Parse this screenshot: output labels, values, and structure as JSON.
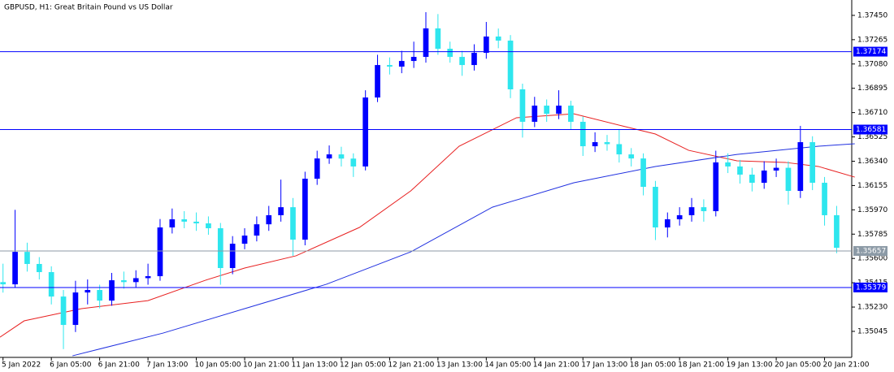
{
  "chart_data": {
    "type": "candlestick",
    "title": "GBPUSD, H1:  Great Britain Pound vs US Dollar",
    "up_color": "#0000ff",
    "down_color": "#2ee6ee",
    "xlim": [
      -1,
      281
    ],
    "ylim": [
      1.34847,
      1.37567
    ],
    "x": [
      0,
      4,
      8,
      12,
      16,
      20,
      24,
      28,
      32,
      36,
      40,
      44,
      48,
      52,
      56,
      60,
      64,
      68,
      72,
      76,
      80,
      84,
      88,
      92,
      96,
      100,
      104,
      108,
      112,
      116,
      120,
      124,
      128,
      132,
      136,
      140,
      144,
      148,
      152,
      156,
      160,
      164,
      168,
      172,
      176,
      180,
      184,
      188,
      192,
      196,
      200,
      204,
      208,
      212,
      216,
      220,
      224,
      228,
      232,
      236,
      240,
      244,
      248,
      252,
      256,
      260,
      264,
      268,
      272,
      276
    ],
    "ohlc": [
      [
        1.3542,
        1.3556,
        1.3534,
        1.35403
      ],
      [
        1.35403,
        1.3597,
        1.3538,
        1.3565
      ],
      [
        1.3565,
        1.3572,
        1.355,
        1.35558
      ],
      [
        1.35558,
        1.3561,
        1.3544,
        1.35496
      ],
      [
        1.35496,
        1.3554,
        1.3525,
        1.3531
      ],
      [
        1.3531,
        1.3536,
        1.3491,
        1.35094
      ],
      [
        1.35094,
        1.3543,
        1.3504,
        1.35341
      ],
      [
        1.35341,
        1.3544,
        1.3525,
        1.3536
      ],
      [
        1.3536,
        1.354,
        1.3522,
        1.35279
      ],
      [
        1.35279,
        1.3549,
        1.3524,
        1.35434
      ],
      [
        1.35434,
        1.355,
        1.3537,
        1.3542
      ],
      [
        1.3542,
        1.3551,
        1.3538,
        1.3545
      ],
      [
        1.3545,
        1.3556,
        1.354,
        1.35465
      ],
      [
        1.35465,
        1.359,
        1.3543,
        1.35836
      ],
      [
        1.35836,
        1.3598,
        1.3579,
        1.35898
      ],
      [
        1.35898,
        1.3596,
        1.3583,
        1.3588
      ],
      [
        1.3588,
        1.3595,
        1.3581,
        1.35867
      ],
      [
        1.35867,
        1.3592,
        1.3578,
        1.3583
      ],
      [
        1.3583,
        1.3587,
        1.354,
        1.35527
      ],
      [
        1.35527,
        1.3577,
        1.3548,
        1.35712
      ],
      [
        1.35712,
        1.3583,
        1.3567,
        1.35774
      ],
      [
        1.35774,
        1.3592,
        1.3573,
        1.3586
      ],
      [
        1.3586,
        1.36,
        1.3581,
        1.35929
      ],
      [
        1.35929,
        1.362,
        1.3588,
        1.3599
      ],
      [
        1.3599,
        1.3606,
        1.3562,
        1.35743
      ],
      [
        1.35743,
        1.3626,
        1.357,
        1.36207
      ],
      [
        1.36207,
        1.3642,
        1.3616,
        1.36361
      ],
      [
        1.36361,
        1.3646,
        1.3632,
        1.36392
      ],
      [
        1.36392,
        1.3645,
        1.363,
        1.3636
      ],
      [
        1.3636,
        1.364,
        1.3622,
        1.363
      ],
      [
        1.363,
        1.3688,
        1.3627,
        1.36825
      ],
      [
        1.36825,
        1.3715,
        1.3679,
        1.37072
      ],
      [
        1.37072,
        1.3713,
        1.37,
        1.3706
      ],
      [
        1.3706,
        1.3718,
        1.3701,
        1.37103
      ],
      [
        1.37103,
        1.3725,
        1.3705,
        1.37134
      ],
      [
        1.37134,
        1.37474,
        1.3709,
        1.37351
      ],
      [
        1.37351,
        1.3746,
        1.3715,
        1.37196
      ],
      [
        1.37196,
        1.3725,
        1.3709,
        1.37134
      ],
      [
        1.37134,
        1.3718,
        1.3699,
        1.37072
      ],
      [
        1.37072,
        1.3723,
        1.3703,
        1.37165
      ],
      [
        1.37165,
        1.374,
        1.3712,
        1.37289
      ],
      [
        1.37289,
        1.3735,
        1.372,
        1.37258
      ],
      [
        1.37258,
        1.373,
        1.3682,
        1.36887
      ],
      [
        1.36887,
        1.3693,
        1.3652,
        1.3664
      ],
      [
        1.3664,
        1.3683,
        1.366,
        1.36763
      ],
      [
        1.36763,
        1.3681,
        1.3664,
        1.36701
      ],
      [
        1.36701,
        1.3688,
        1.3666,
        1.36763
      ],
      [
        1.36763,
        1.368,
        1.3658,
        1.3664
      ],
      [
        1.3664,
        1.3668,
        1.3638,
        1.36454
      ],
      [
        1.36454,
        1.3656,
        1.3641,
        1.36485
      ],
      [
        1.36485,
        1.3654,
        1.3642,
        1.3647
      ],
      [
        1.3647,
        1.3658,
        1.3633,
        1.36392
      ],
      [
        1.36392,
        1.3644,
        1.363,
        1.36361
      ],
      [
        1.36361,
        1.364,
        1.3608,
        1.36145
      ],
      [
        1.36145,
        1.3619,
        1.3574,
        1.35836
      ],
      [
        1.35836,
        1.3595,
        1.3576,
        1.35898
      ],
      [
        1.35898,
        1.3599,
        1.3585,
        1.35929
      ],
      [
        1.35929,
        1.3606,
        1.3588,
        1.3599
      ],
      [
        1.3599,
        1.3605,
        1.3588,
        1.3596
      ],
      [
        1.3596,
        1.3642,
        1.3592,
        1.36331
      ],
      [
        1.36331,
        1.364,
        1.3625,
        1.363
      ],
      [
        1.363,
        1.3635,
        1.3617,
        1.36238
      ],
      [
        1.36238,
        1.3629,
        1.3611,
        1.36176
      ],
      [
        1.36176,
        1.3634,
        1.3613,
        1.36269
      ],
      [
        1.36269,
        1.3636,
        1.3622,
        1.3629
      ],
      [
        1.3629,
        1.3634,
        1.3601,
        1.36114
      ],
      [
        1.36114,
        1.36609,
        1.3606,
        1.36485
      ],
      [
        1.36485,
        1.3653,
        1.3612,
        1.36176
      ],
      [
        1.36176,
        1.3622,
        1.3585,
        1.35929
      ],
      [
        1.35929,
        1.36,
        1.3564,
        1.35681
      ]
    ],
    "moving_averages": [
      {
        "color": "#e82020",
        "x": [
          -1,
          7,
          26,
          48,
          67,
          80,
          97,
          118,
          135,
          151,
          170,
          189,
          205,
          216,
          227,
          243,
          259,
          270,
          282
        ],
        "values": [
          1.35001,
          1.35125,
          1.35218,
          1.35279,
          1.35434,
          1.35527,
          1.3562,
          1.35836,
          1.36114,
          1.36454,
          1.36671,
          1.36701,
          1.36609,
          1.36547,
          1.36423,
          1.36343,
          1.36331,
          1.363,
          1.36219
        ]
      },
      {
        "color": "#2030e0",
        "x": [
          23,
          53,
          80,
          107,
          135,
          162,
          189,
          216,
          243,
          270,
          282
        ],
        "values": [
          1.34859,
          1.35032,
          1.35218,
          1.35403,
          1.3565,
          1.3599,
          1.36176,
          1.363,
          1.36392,
          1.36454,
          1.36473
        ]
      }
    ],
    "levels": [
      {
        "value": 1.37174,
        "color": "#0000ff"
      },
      {
        "value": 1.36581,
        "color": "#0000ff"
      },
      {
        "value": 1.35657,
        "color": "#8c9aa6"
      },
      {
        "value": 1.35379,
        "color": "#0000ff"
      }
    ],
    "yticks": [
      {
        "value": 1.3745,
        "label": "1.37450"
      },
      {
        "value": 1.37265,
        "label": "1.37265"
      },
      {
        "value": 1.3708,
        "label": "1.37080"
      },
      {
        "value": 1.36895,
        "label": "1.36895"
      },
      {
        "value": 1.3671,
        "label": "1.36710"
      },
      {
        "value": 1.36525,
        "label": "1.36525"
      },
      {
        "value": 1.3634,
        "label": "1.36340"
      },
      {
        "value": 1.36155,
        "label": "1.36155"
      },
      {
        "value": 1.3597,
        "label": "1.35970"
      },
      {
        "value": 1.35785,
        "label": "1.35785"
      },
      {
        "value": 1.356,
        "label": "1.35600"
      },
      {
        "value": 1.35415,
        "label": "1.35415"
      },
      {
        "value": 1.3523,
        "label": "1.35230"
      },
      {
        "value": 1.35045,
        "label": "1.35045"
      }
    ],
    "xticks": [
      {
        "value": 0,
        "label": "5 Jan 2022"
      },
      {
        "value": 16,
        "label": "6 Jan 05:00"
      },
      {
        "value": 32,
        "label": "6 Jan 21:00"
      },
      {
        "value": 48,
        "label": "7 Jan 13:00"
      },
      {
        "value": 64,
        "label": "10 Jan 05:00"
      },
      {
        "value": 80,
        "label": "10 Jan 21:00"
      },
      {
        "value": 96,
        "label": "11 Jan 13:00"
      },
      {
        "value": 112,
        "label": "12 Jan 05:00"
      },
      {
        "value": 128,
        "label": "12 Jan 21:00"
      },
      {
        "value": 144,
        "label": "13 Jan 13:00"
      },
      {
        "value": 160,
        "label": "14 Jan 05:00"
      },
      {
        "value": 176,
        "label": "14 Jan 21:00"
      },
      {
        "value": 192,
        "label": "17 Jan 13:00"
      },
      {
        "value": 208,
        "label": "18 Jan 05:00"
      },
      {
        "value": 224,
        "label": "18 Jan 21:00"
      },
      {
        "value": 240,
        "label": "19 Jan 13:00"
      },
      {
        "value": 256,
        "label": "20 Jan 05:00"
      },
      {
        "value": 272,
        "label": "20 Jan 21:00"
      }
    ]
  }
}
